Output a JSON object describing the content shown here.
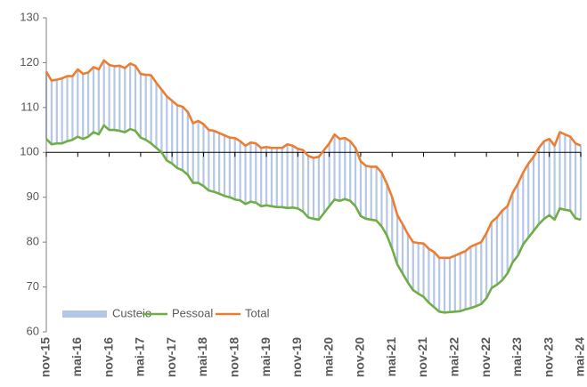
{
  "chart_data": {
    "type": "line",
    "categories": [
      "nov-15",
      null,
      null,
      null,
      null,
      null,
      "mai-16",
      null,
      null,
      null,
      null,
      null,
      "nov-16",
      null,
      null,
      null,
      null,
      null,
      "mai-17",
      null,
      null,
      null,
      null,
      null,
      "nov-17",
      null,
      null,
      null,
      null,
      null,
      "mai-18",
      null,
      null,
      null,
      null,
      null,
      "nov-18",
      null,
      null,
      null,
      null,
      null,
      "mai-19",
      null,
      null,
      null,
      null,
      null,
      "nov-19",
      null,
      null,
      null,
      null,
      null,
      "mai-20",
      null,
      null,
      null,
      null,
      null,
      "nov-20",
      null,
      null,
      null,
      null,
      null,
      "mai-21",
      null,
      null,
      null,
      null,
      null,
      "nov-21",
      null,
      null,
      null,
      null,
      null,
      "mai-22",
      null,
      null,
      null,
      null,
      null,
      "nov-22",
      null,
      null,
      null,
      null,
      null,
      "mai-23",
      null,
      null,
      null,
      null,
      null,
      "nov-23",
      null,
      null,
      null,
      null,
      null,
      "mai-24"
    ],
    "hilo": {
      "name": "Custeio",
      "color": "#b4c7e7"
    },
    "series": [
      {
        "name": "Pessoal",
        "color": "#70ad47",
        "values": [
          103,
          101.8,
          102,
          102,
          102.5,
          102.8,
          103.5,
          103,
          103.5,
          104.5,
          104,
          106,
          105,
          105,
          104.8,
          104.5,
          105.2,
          104.8,
          103.3,
          102.8,
          102,
          101,
          100,
          98.2,
          97.5,
          96.5,
          96,
          95,
          93.2,
          93.2,
          92.5,
          91.5,
          91.2,
          90.8,
          90.3,
          90,
          89.5,
          89.3,
          88.5,
          89,
          88.8,
          88,
          88.2,
          88,
          87.8,
          87.8,
          87.6,
          87.7,
          87.5,
          86.8,
          85.5,
          85.2,
          85,
          86.5,
          88,
          89.5,
          89.2,
          89.6,
          89.2,
          88,
          85.8,
          85.2,
          85,
          84.8,
          83.5,
          81.5,
          78.5,
          75,
          73,
          71,
          69.3,
          68.5,
          67.8,
          66.5,
          65.5,
          64.5,
          64.3,
          64.4,
          64.5,
          64.6,
          65,
          65.3,
          65.7,
          66.2,
          67.5,
          69.8,
          70.5,
          71.5,
          73,
          75.5,
          77,
          79.5,
          81,
          82.5,
          84,
          85.2,
          86,
          85,
          87.5,
          87.2,
          87,
          85.3,
          85
        ]
      },
      {
        "name": "Total",
        "color": "#ed7d31",
        "values": [
          118,
          116,
          116.2,
          116.5,
          117,
          117,
          118.5,
          117.5,
          117.8,
          119,
          118.5,
          120.5,
          119.5,
          119.2,
          119.3,
          118.8,
          119.8,
          119.3,
          117.5,
          117.3,
          117.2,
          115.5,
          114,
          112.5,
          111.5,
          110.5,
          110.2,
          109,
          106.5,
          107,
          106.3,
          105,
          104.8,
          104.3,
          103.8,
          103.3,
          103.2,
          102.5,
          101.5,
          102.2,
          102,
          101,
          101.2,
          101,
          101,
          101,
          101.8,
          101.5,
          100.8,
          100.5,
          99.2,
          98.8,
          99,
          100.5,
          102,
          104,
          103,
          103.2,
          102.5,
          101,
          98,
          97,
          96.8,
          96.8,
          95.5,
          93,
          90,
          86,
          84,
          81.8,
          80,
          79.8,
          79.7,
          78.5,
          77.8,
          76.5,
          76.5,
          76.5,
          77,
          77.5,
          78,
          79,
          79.5,
          80,
          82,
          84.5,
          85.5,
          87,
          88,
          91,
          93,
          95.5,
          97.5,
          99,
          101,
          102.5,
          103,
          101.5,
          104.5,
          104,
          103.5,
          102,
          101.5
        ]
      }
    ],
    "ylim": [
      60,
      130
    ],
    "yticks": [
      60,
      70,
      80,
      90,
      100,
      110,
      120,
      130
    ],
    "xaxis_crosses": 100,
    "grid": false,
    "legend": "bottom-left"
  }
}
